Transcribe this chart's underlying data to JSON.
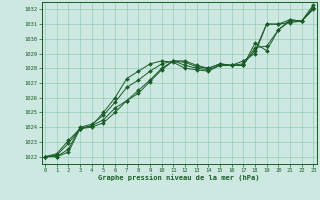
{
  "title": "Graphe pression niveau de la mer (hPa)",
  "bg_color": "#cce8e0",
  "grid_color": "#99ccbb",
  "line_color": "#1a5c28",
  "marker_color": "#1a5c28",
  "text_color": "#1a5c28",
  "xlim": [
    -0.3,
    23.3
  ],
  "ylim": [
    1021.5,
    1032.5
  ],
  "yticks": [
    1022,
    1023,
    1024,
    1025,
    1026,
    1027,
    1028,
    1029,
    1030,
    1031,
    1032
  ],
  "xticks": [
    0,
    1,
    2,
    3,
    4,
    5,
    6,
    7,
    8,
    9,
    10,
    11,
    12,
    13,
    14,
    15,
    16,
    17,
    18,
    19,
    20,
    21,
    22,
    23
  ],
  "series": [
    [
      1022.0,
      1022.2,
      1023.1,
      1023.9,
      1024.0,
      1024.3,
      1025.0,
      1025.8,
      1026.5,
      1027.2,
      1028.0,
      1028.5,
      1028.5,
      1028.2,
      1028.0,
      1028.3,
      1028.2,
      1028.2,
      1029.7,
      1029.2,
      1030.6,
      1031.3,
      1031.2,
      1032.3
    ],
    [
      1022.0,
      1022.1,
      1022.9,
      1023.9,
      1024.1,
      1024.5,
      1025.3,
      1025.8,
      1026.3,
      1027.1,
      1027.9,
      1028.5,
      1028.4,
      1028.1,
      1028.0,
      1028.3,
      1028.2,
      1028.2,
      1029.4,
      1029.5,
      1030.6,
      1031.2,
      1031.2,
      1032.1
    ],
    [
      1022.0,
      1022.0,
      1022.5,
      1024.0,
      1024.2,
      1024.8,
      1025.7,
      1026.7,
      1027.2,
      1027.8,
      1028.3,
      1028.5,
      1028.2,
      1028.0,
      1027.9,
      1028.2,
      1028.2,
      1028.3,
      1029.2,
      1031.0,
      1031.0,
      1031.3,
      1031.2,
      1032.1
    ],
    [
      1022.0,
      1022.0,
      1022.3,
      1023.9,
      1024.1,
      1025.0,
      1026.0,
      1027.3,
      1027.8,
      1028.3,
      1028.5,
      1028.4,
      1028.0,
      1027.9,
      1027.8,
      1028.2,
      1028.2,
      1028.5,
      1029.0,
      1031.0,
      1031.0,
      1031.1,
      1031.2,
      1032.0
    ]
  ]
}
